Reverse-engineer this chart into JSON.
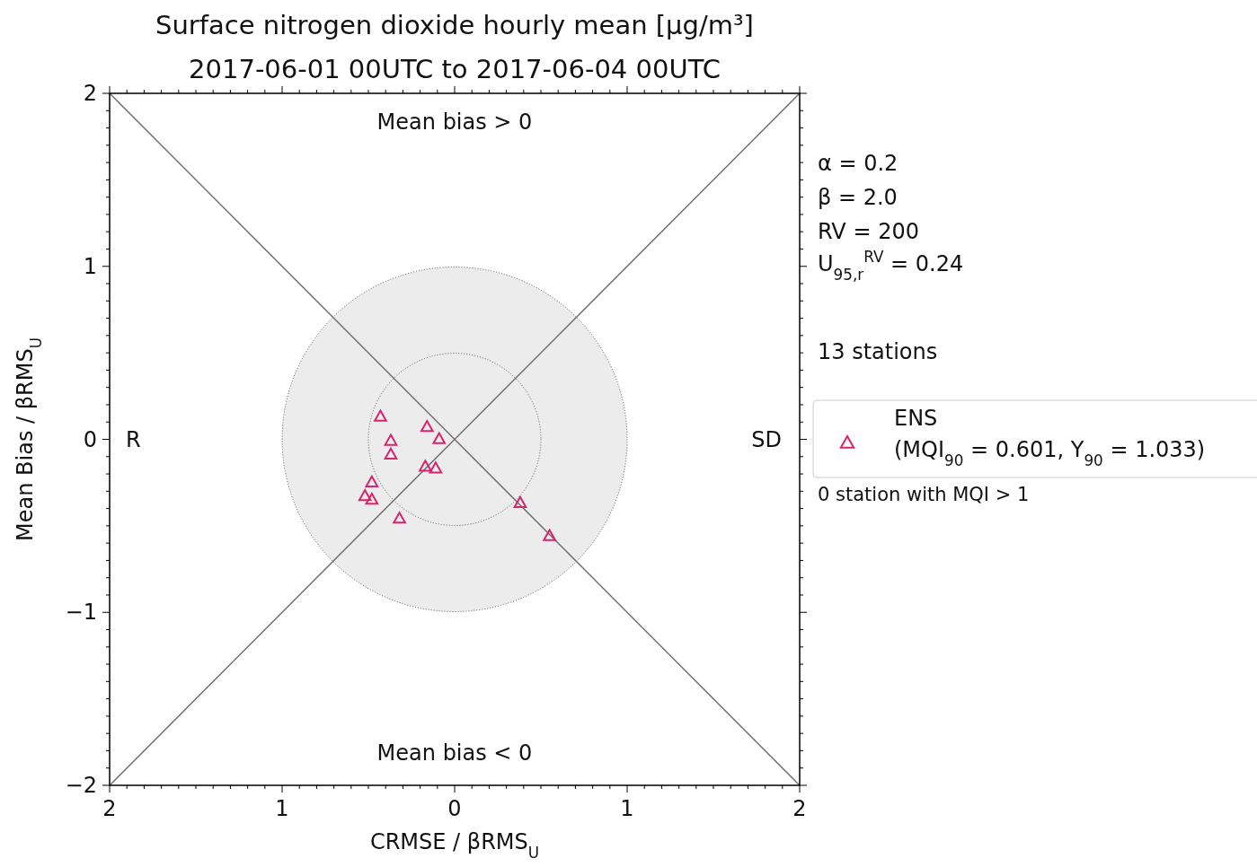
{
  "chart_data": {
    "type": "scatter",
    "title": "Surface nitrogen dioxide hourly mean [μg/m³]",
    "subtitle": "2017-06-01 00UTC to 2017-06-04 00UTC",
    "xlabel": "CRMSE / βRMS$_{U}$",
    "ylabel": "Mean Bias / βRMS$_{U}$",
    "xlim": [
      -2,
      2
    ],
    "ylim": [
      -2,
      2
    ],
    "xticks": [
      {
        "value": -2,
        "label": "2"
      },
      {
        "value": -1,
        "label": "1"
      },
      0,
      {
        "value": 1,
        "label": "1"
      },
      2
    ],
    "yticks": [
      -2,
      -1,
      0,
      1,
      2
    ],
    "grid": false,
    "legend": "right",
    "annotations": [
      "Mean bias > 0",
      "Mean bias < 0",
      "R",
      "SD",
      "α = 0.2",
      "β = 2.0",
      "RV = 200",
      "U$_{95,r}$$^{RV}$ = 0.24",
      "13 stations",
      "0 station with MQI > 1"
    ],
    "series": [
      {
        "type": "line",
        "color": "#6e6e6e",
        "x": [
          -2,
          2
        ],
        "values": [
          -2,
          2
        ]
      },
      {
        "type": "line",
        "color": "#6e6e6e",
        "x": [
          -2,
          2
        ],
        "values": [
          2,
          -2
        ]
      },
      {
        "marker": "triangle",
        "name": "ENS\n(MQI$_{90}$ = 0.601, Y$_{90}$ = 1.033)",
        "color": "#d6246e",
        "x": [
          -0.43,
          -0.16,
          -0.09,
          -0.37,
          -0.37,
          -0.17,
          -0.11,
          -0.48,
          -0.52,
          -0.48,
          -0.32,
          0.38,
          0.55
        ],
        "values": [
          0.13,
          0.07,
          0.0,
          -0.01,
          -0.09,
          -0.16,
          -0.17,
          -0.25,
          -0.33,
          -0.35,
          -0.46,
          -0.37,
          -0.56
        ]
      }
    ]
  }
}
